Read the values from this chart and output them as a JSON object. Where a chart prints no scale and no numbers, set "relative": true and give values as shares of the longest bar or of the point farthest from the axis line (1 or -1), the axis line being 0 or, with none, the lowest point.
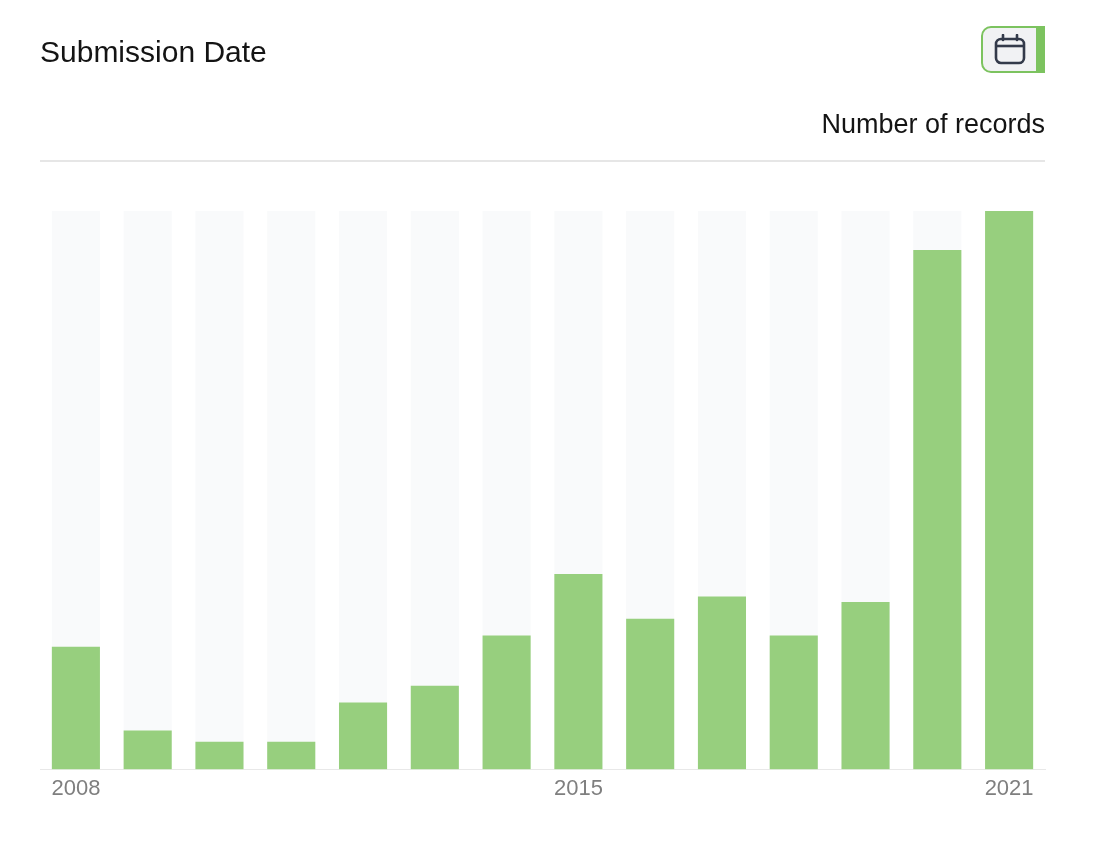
{
  "chart_data": {
    "type": "bar",
    "title": "Submission Date",
    "ylabel": "Number of records",
    "categories": [
      "2008",
      null,
      null,
      null,
      null,
      null,
      null,
      "2015",
      null,
      null,
      null,
      null,
      null,
      "2021"
    ],
    "values": [
      0.22,
      0.07,
      0.05,
      0.05,
      0.12,
      0.15,
      0.24,
      0.35,
      0.27,
      0.31,
      0.24,
      0.3,
      0.93,
      1
    ],
    "color": "#97cf7e",
    "relative": true
  }
}
